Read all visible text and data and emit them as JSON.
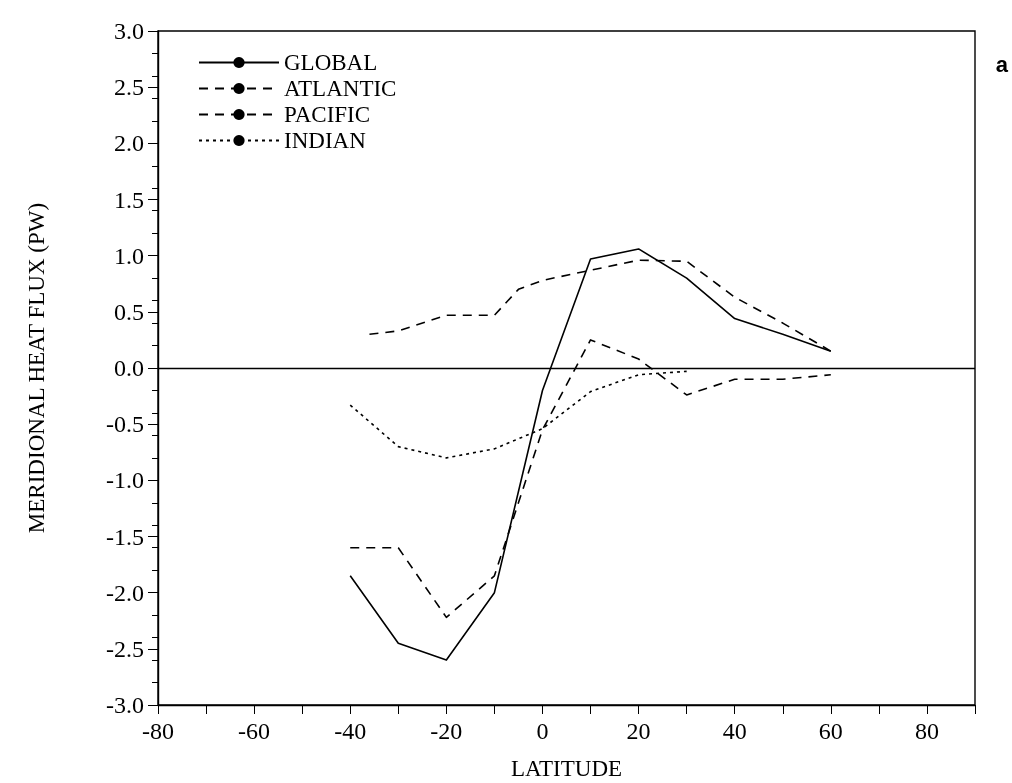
{
  "chart_data": {
    "type": "line",
    "xlabel": "LATITUDE",
    "ylabel": "MERIDIONAL HEAT FLUX (PW)",
    "annotations": [
      "a"
    ],
    "xlim": [
      -80,
      90
    ],
    "xticks": [
      -80,
      {
        "value": -70,
        "label": null
      },
      -60,
      {
        "value": -50,
        "label": null
      },
      -40,
      {
        "value": -30,
        "label": null
      },
      -20,
      {
        "value": -10,
        "label": null
      },
      0,
      {
        "value": 10,
        "label": null
      },
      20,
      {
        "value": 30,
        "label": null
      },
      40,
      {
        "value": 50,
        "label": null
      },
      60,
      {
        "value": 70,
        "label": null
      },
      80,
      {
        "value": 90,
        "label": null
      }
    ],
    "ylim": [
      -3,
      3
    ],
    "yticks": [
      {
        "value": -3,
        "label": "-3.0"
      },
      {
        "value": -2.5,
        "label": "-2.5"
      },
      {
        "value": -2,
        "label": "-2.0"
      },
      {
        "value": -1.5,
        "label": "-1.5"
      },
      {
        "value": -1,
        "label": "-1.0"
      },
      {
        "value": -0.5,
        "label": "-0.5"
      },
      {
        "value": 0,
        "label": "0.0"
      },
      {
        "value": 0.5,
        "label": "0.5"
      },
      {
        "value": 1,
        "label": "1.0"
      },
      {
        "value": 1.5,
        "label": "1.5"
      },
      {
        "value": 2,
        "label": "2.0"
      },
      {
        "value": 2.5,
        "label": "2.5"
      },
      {
        "value": 3,
        "label": "3.0"
      }
    ],
    "grid": false,
    "legend": "top left",
    "marker": "none",
    "ref_lines": [
      {
        "axis": "y",
        "value": 0,
        "color": "#000000",
        "line_style": "solid"
      }
    ],
    "series": [
      {
        "name": "GLOBAL",
        "color": "#000000",
        "line_style": "solid",
        "x": [
          -40,
          -30,
          -20,
          -10,
          0,
          10,
          20,
          30,
          40,
          50,
          60
        ],
        "values": [
          -1.85,
          -2.45,
          -2.6,
          -2.0,
          -0.2,
          0.97,
          1.06,
          0.8,
          0.44,
          0.3,
          0.15
        ]
      },
      {
        "name": "ATLANTIC",
        "color": "#000000",
        "line_style": "dashed",
        "x": [
          -36,
          -30,
          -20,
          -10,
          -5,
          0,
          10,
          20,
          30,
          40,
          50,
          60
        ],
        "values": [
          0.3,
          0.33,
          0.47,
          0.47,
          0.7,
          0.78,
          0.87,
          0.96,
          0.95,
          0.63,
          0.4,
          0.15
        ]
      },
      {
        "name": "PACIFIC",
        "color": "#000000",
        "line_style": "dashed",
        "x": [
          -40,
          -30,
          -20,
          -10,
          0,
          10,
          20,
          30,
          40,
          50,
          60
        ],
        "values": [
          -1.6,
          -1.6,
          -2.22,
          -1.85,
          -0.55,
          0.25,
          0.08,
          -0.24,
          -0.1,
          -0.1,
          -0.06
        ]
      },
      {
        "name": "INDIAN",
        "color": "#000000",
        "line_style": "dotted",
        "x": [
          -40,
          -30,
          -20,
          -10,
          0,
          10,
          20,
          30
        ],
        "values": [
          -0.33,
          -0.7,
          -0.8,
          -0.72,
          -0.54,
          -0.21,
          -0.06,
          -0.03
        ]
      }
    ]
  }
}
